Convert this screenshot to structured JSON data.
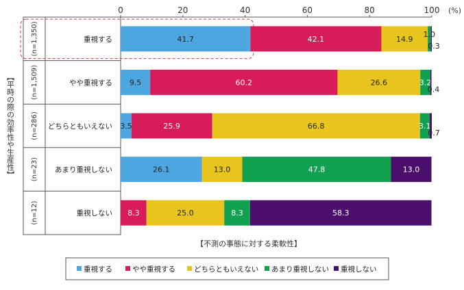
{
  "chart_data": {
    "type": "bar",
    "orientation": "horizontal",
    "stacked": true,
    "x_axis_unit": "(%)",
    "x_ticks": [
      "0",
      "20",
      "40",
      "60",
      "80",
      "100"
    ],
    "xlim": [
      0,
      100
    ],
    "y_axis_title": "【平時の際の効率性や生産性】",
    "x_axis_title": "【不測の事態に対する柔軟性】",
    "categories": [
      "重視する",
      "やや重視する",
      "どちらともいえない",
      "あまり重視しない",
      "重視しない"
    ],
    "sample_sizes": [
      "(n=1,350)",
      "(n=1,509)",
      "(n=286)",
      "(n=23)",
      "(n=12)"
    ],
    "series": [
      {
        "name": "重視する",
        "color": "#4ea6e0",
        "values": [
          41.7,
          9.5,
          3.5,
          26.1,
          0
        ],
        "labels": [
          "41.7",
          "9.5",
          "3.5",
          "26.1",
          ""
        ]
      },
      {
        "name": "やや重視する",
        "color": "#d81b5a",
        "values": [
          42.1,
          60.2,
          25.9,
          0,
          8.3
        ],
        "labels": [
          "42.1",
          "60.2",
          "25.9",
          "",
          "8.3"
        ]
      },
      {
        "name": "どちらともいえない",
        "color": "#e8c41e",
        "values": [
          14.9,
          26.6,
          66.8,
          13.0,
          25.0
        ],
        "labels": [
          "14.9",
          "26.6",
          "66.8",
          "13.0",
          "25.0"
        ]
      },
      {
        "name": "あまり重視しない",
        "color": "#12a150",
        "values": [
          1.0,
          3.2,
          3.1,
          47.8,
          8.3
        ],
        "labels": [
          "1.0",
          "3.2",
          "3.1",
          "47.8",
          "8.3"
        ]
      },
      {
        "name": "重視しない",
        "color": "#4b0f6b",
        "values": [
          0.3,
          0.4,
          0.7,
          13.0,
          58.3
        ],
        "labels": [
          "0.3",
          "0.4",
          "0.7",
          "13.0",
          "58.3"
        ]
      }
    ],
    "legend": [
      "重視する",
      "やや重視する",
      "どちらともいえない",
      "あまり重視しない",
      "重視しない"
    ],
    "legend_placement": "bottom",
    "highlight_row": "重視する"
  }
}
